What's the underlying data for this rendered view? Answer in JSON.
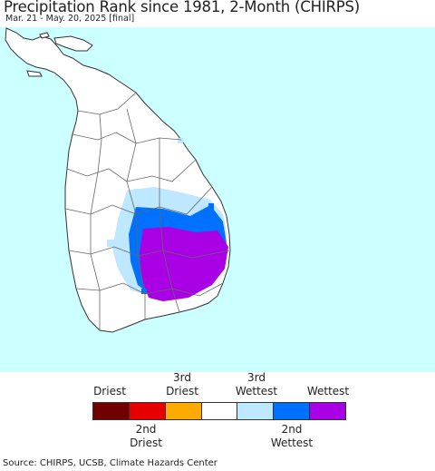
{
  "header": {
    "title": "Precipitation Rank since 1981, 2-Month (CHIRPS)",
    "subtitle": "Mar. 21 - May. 20, 2025 [final]"
  },
  "map": {
    "ocean_color": "#ccffff",
    "land_color": "#ffffff",
    "boundary_color": "#555555"
  },
  "legend": {
    "top_labels": [
      "Driest",
      "3rd\nDriest",
      "3rd\nWettest",
      "Wettest"
    ],
    "bottom_labels": [
      "2nd\nDriest",
      "2nd\nWettest"
    ],
    "colors": [
      "#730000",
      "#e60000",
      "#ffaa00",
      "#ffffff",
      "#bee8ff",
      "#0070ff",
      "#aa00e6"
    ]
  },
  "footer": {
    "source": "Source: CHIRPS, UCSB, Climate Hazards Center"
  }
}
